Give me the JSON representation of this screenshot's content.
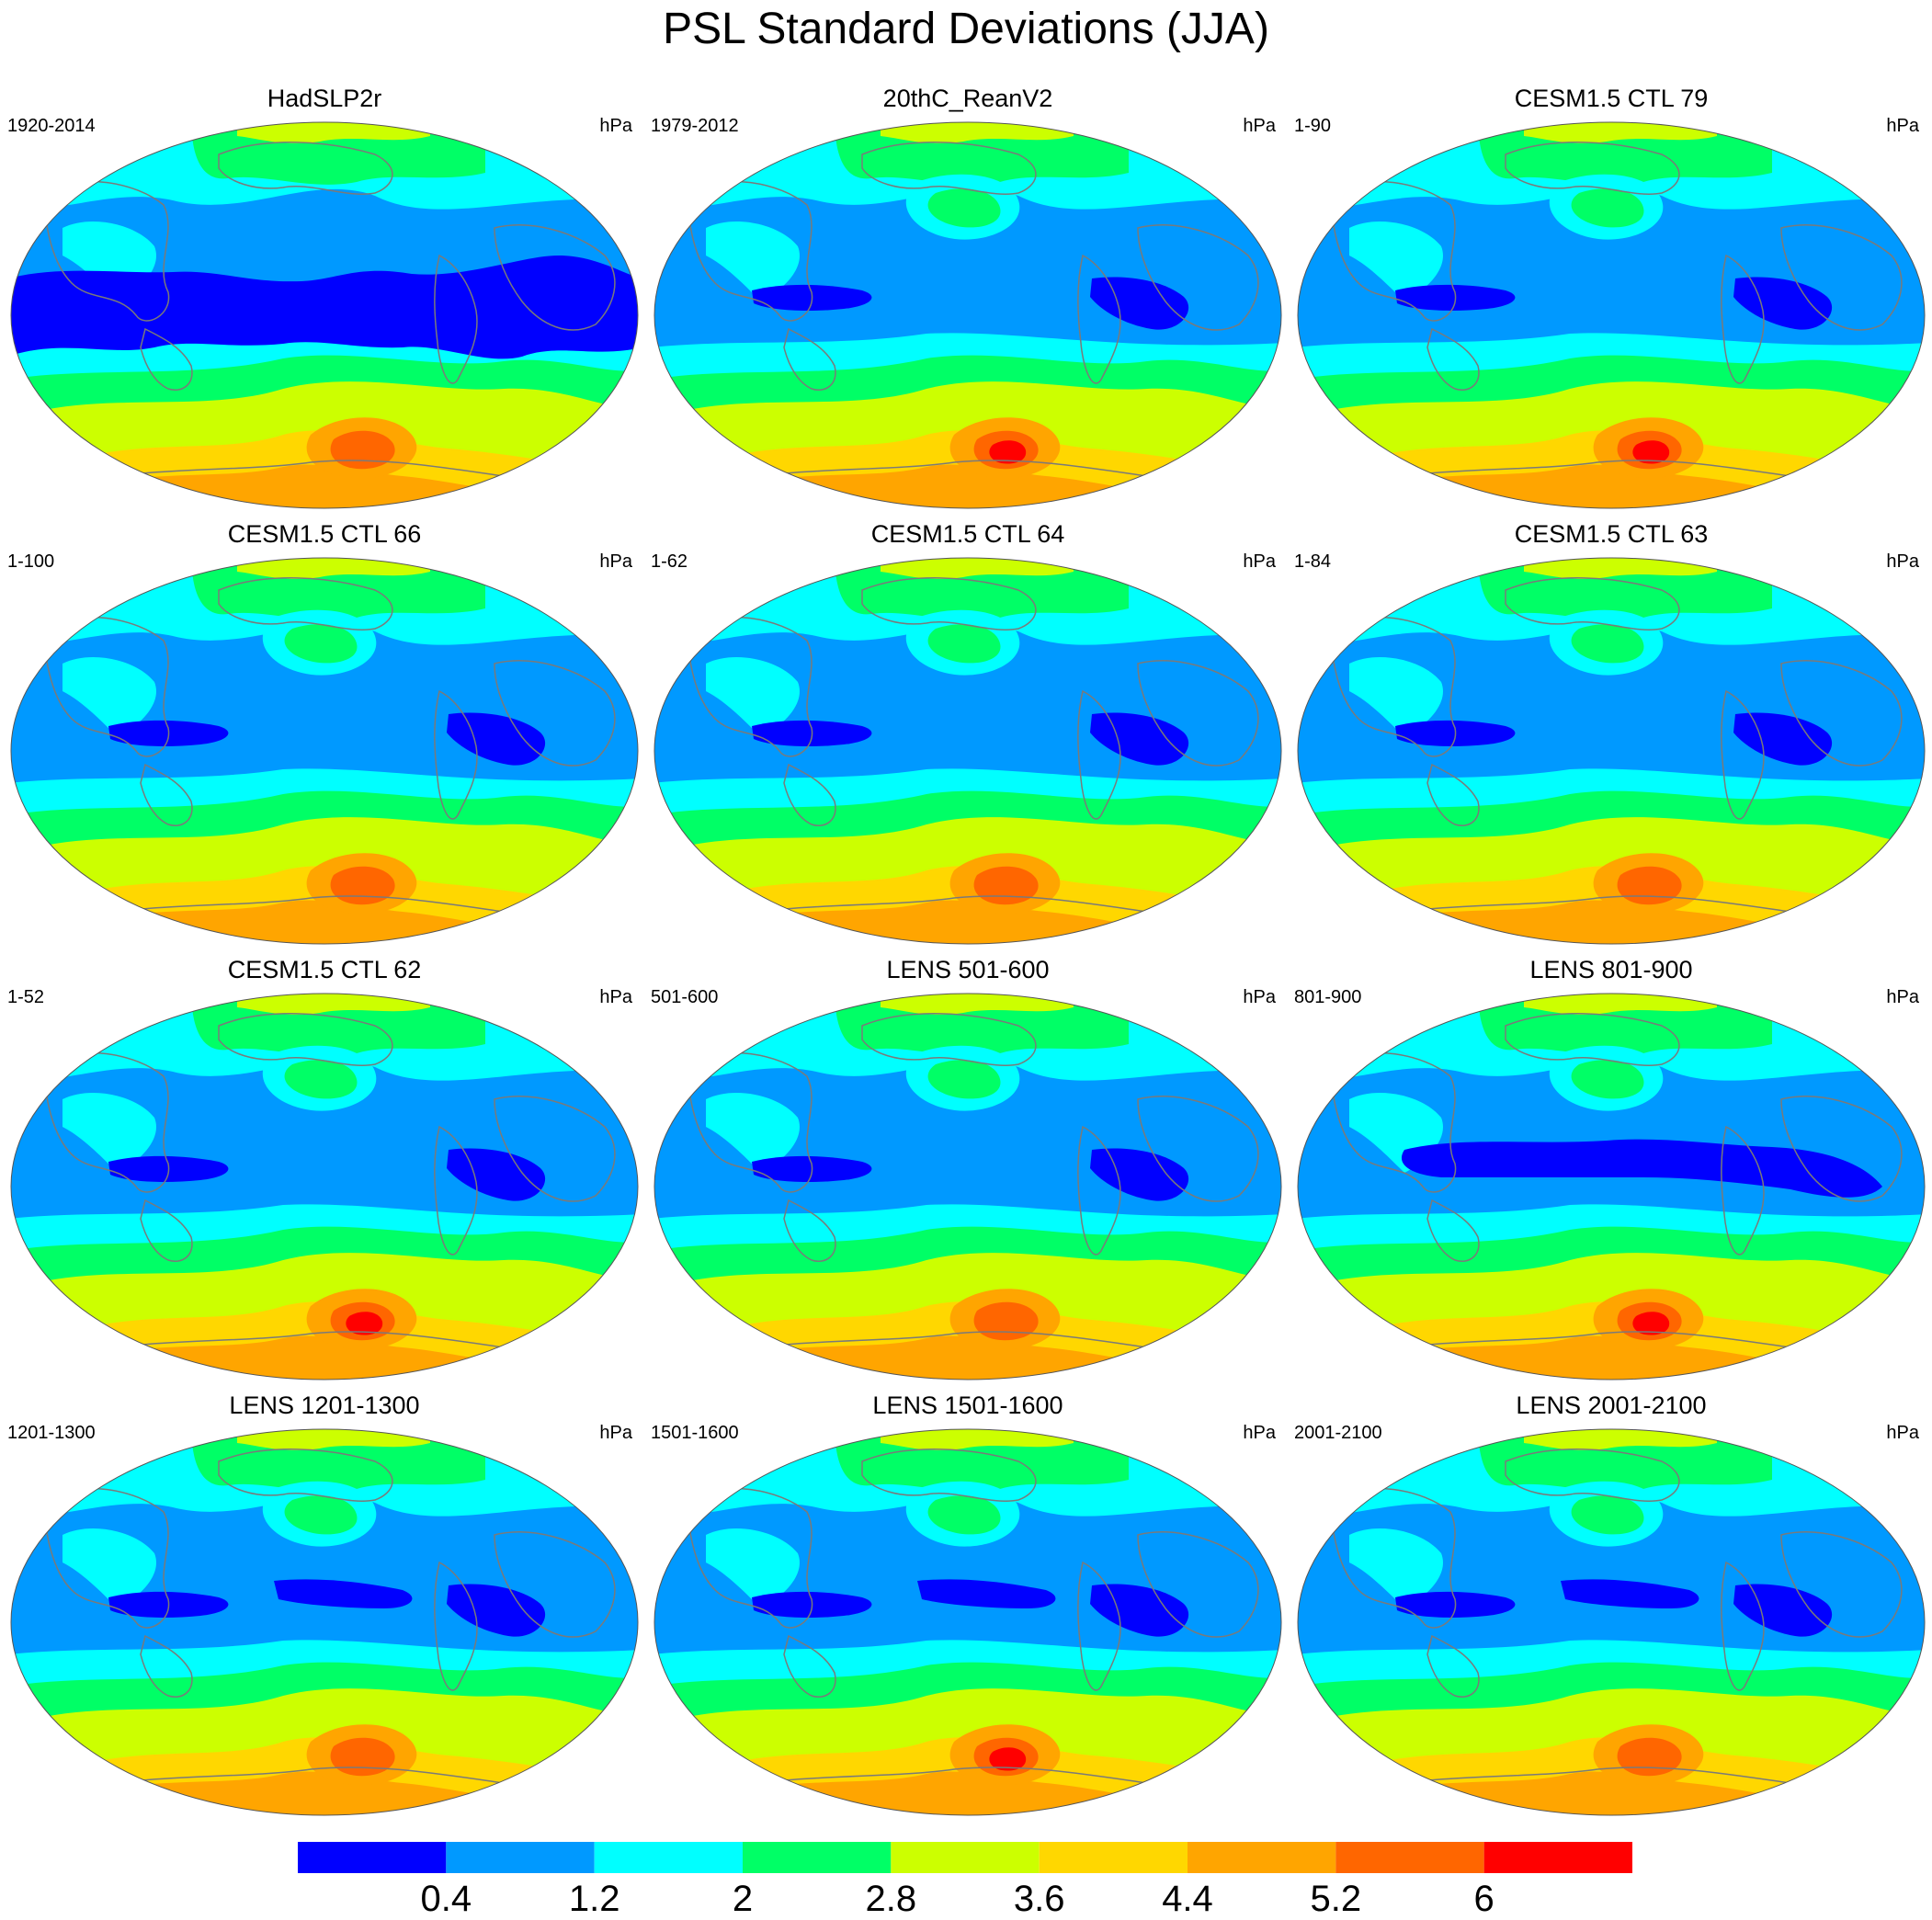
{
  "title": "PSL Standard Deviations (JJA)",
  "panels": [
    {
      "title": "HadSLP2r",
      "time": "1920-2014",
      "units": "hPa",
      "variant": "obs_wide"
    },
    {
      "title": "20thC_ReanV2",
      "time": "1979-2012",
      "units": "hPa",
      "variant": "rean"
    },
    {
      "title": "CESM1.5 CTL 79",
      "time": "1-90",
      "units": "hPa",
      "variant": "strong"
    },
    {
      "title": "CESM1.5 CTL 66",
      "time": "1-100",
      "units": "hPa",
      "variant": "model"
    },
    {
      "title": "CESM1.5 CTL 64",
      "time": "1-62",
      "units": "hPa",
      "variant": "model"
    },
    {
      "title": "CESM1.5 CTL 63",
      "time": "1-84",
      "units": "hPa",
      "variant": "model"
    },
    {
      "title": "CESM1.5 CTL 62",
      "time": "1-52",
      "units": "hPa",
      "variant": "strong"
    },
    {
      "title": "LENS 501-600",
      "time": "501-600",
      "units": "hPa",
      "variant": "model"
    },
    {
      "title": "LENS 801-900",
      "time": "801-900",
      "units": "hPa",
      "variant": "wide_strong"
    },
    {
      "title": "LENS 1201-1300",
      "time": "1201-1300",
      "units": "hPa",
      "variant": "lens"
    },
    {
      "title": "LENS 1501-1600",
      "time": "1501-1600",
      "units": "hPa",
      "variant": "lens_peak"
    },
    {
      "title": "LENS 2001-2100",
      "time": "2001-2100",
      "units": "hPa",
      "variant": "lens"
    }
  ],
  "colorbar": {
    "colors": [
      "#0000ff",
      "#0099ff",
      "#00ffff",
      "#00ff66",
      "#ccff00",
      "#ffd700",
      "#ffa500",
      "#ff6600",
      "#ff0000"
    ],
    "labels": [
      "0.4",
      "1.2",
      "2",
      "2.8",
      "3.6",
      "4.4",
      "5.2",
      "6"
    ]
  }
}
